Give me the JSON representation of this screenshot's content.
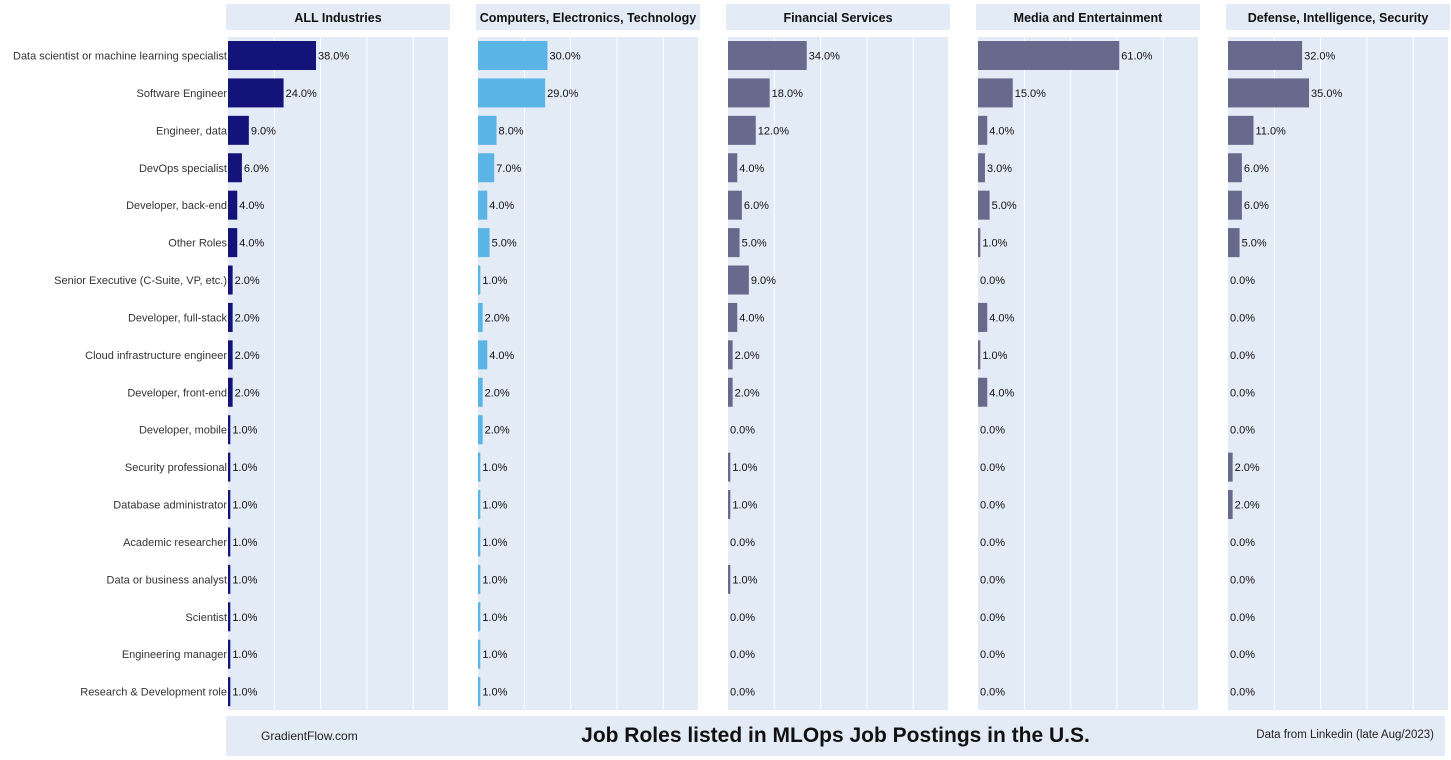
{
  "chart_data": {
    "type": "bar",
    "orientation": "horizontal",
    "title": "Job Roles listed in MLOps Job Postings in the U.S.",
    "source_left": "GradientFlow.com",
    "source_right": "Data from Linkedin (late Aug/2023)",
    "categories": [
      "Data scientist or machine learning specialist",
      "Software Engineer",
      "Engineer, data",
      "DevOps specialist",
      "Developer, back-end",
      "Other Roles",
      "Senior Executive (C-Suite, VP, etc.)",
      "Developer, full-stack",
      "Cloud infrastructure engineer",
      "Developer, front-end",
      "Developer, mobile",
      "Security professional",
      "Database administrator",
      "Academic researcher",
      "Data or business analyst",
      "Scientist",
      "Engineering manager",
      "Research & Development role"
    ],
    "xlim": [
      0,
      95
    ],
    "grid": true,
    "value_format": "percent_one_decimal",
    "colors": {
      "navy": "#14137a",
      "light_blue": "#5ab4e5",
      "slate": "#686a8d",
      "panel_bg": "#e3ebf6",
      "grid": "#ffffff"
    },
    "series": [
      {
        "name": "ALL Industries",
        "color": "#14137a",
        "values": [
          38,
          24,
          9,
          6,
          4,
          4,
          2,
          2,
          2,
          2,
          1,
          1,
          1,
          1,
          1,
          1,
          1,
          1
        ]
      },
      {
        "name": "Computers, Electronics, Technology",
        "color": "#5ab4e5",
        "values": [
          30,
          29,
          8,
          7,
          4,
          5,
          1,
          2,
          4,
          2,
          2,
          1,
          1,
          1,
          1,
          1,
          1,
          1
        ]
      },
      {
        "name": "Financial Services",
        "color": "#686a8d",
        "values": [
          34,
          18,
          12,
          4,
          6,
          5,
          9,
          4,
          2,
          2,
          0,
          1,
          1,
          0,
          1,
          0,
          0,
          0
        ]
      },
      {
        "name": "Media and Entertainment",
        "color": "#686a8d",
        "values": [
          61,
          15,
          4,
          3,
          5,
          1,
          0,
          4,
          1,
          4,
          0,
          0,
          0,
          0,
          0,
          0,
          0,
          0
        ]
      },
      {
        "name": "Defense, Intelligence, Security",
        "color": "#686a8d",
        "values": [
          32,
          35,
          11,
          6,
          6,
          5,
          0,
          0,
          0,
          0,
          0,
          2,
          2,
          0,
          0,
          0,
          0,
          0
        ]
      }
    ]
  }
}
